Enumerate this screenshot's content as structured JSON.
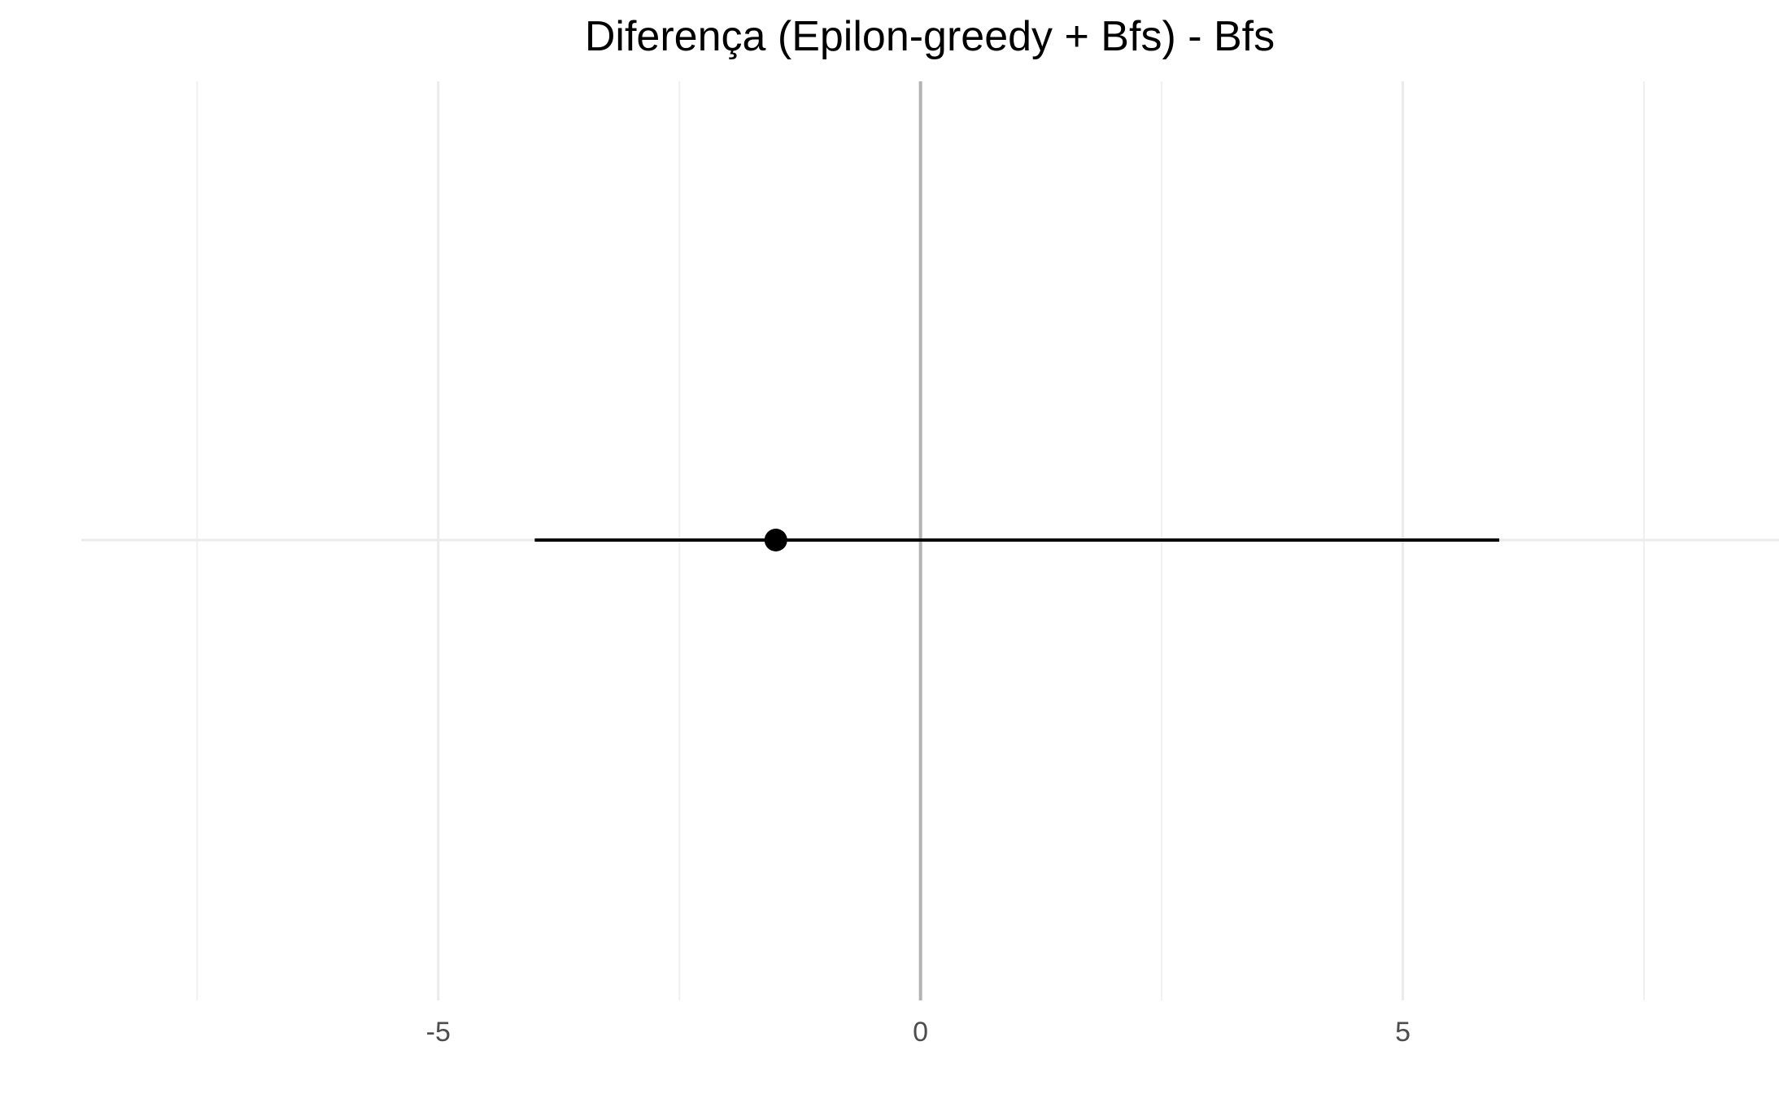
{
  "chart_data": {
    "type": "scatter",
    "title": "Diferença (Epilon-greedy + Bfs) - Bfs",
    "xlabel": "",
    "ylabel": "",
    "xlim": [
      -8.7,
      8.9
    ],
    "x_ticks": [
      -5,
      0,
      5
    ],
    "x_tick_labels": [
      "-5",
      "0",
      "5"
    ],
    "x_minor_ticks": [
      -7.5,
      -2.5,
      2.5,
      7.5
    ],
    "reference_line_x": 0,
    "grid": true,
    "legend": "none",
    "series": [
      {
        "estimate": -1.5,
        "ci_low": -4.0,
        "ci_high": 6.0
      }
    ],
    "colors": {
      "point": "#000000",
      "interval": "#000000",
      "reference": "#b3b3b3",
      "grid": "#ebebeb"
    }
  }
}
